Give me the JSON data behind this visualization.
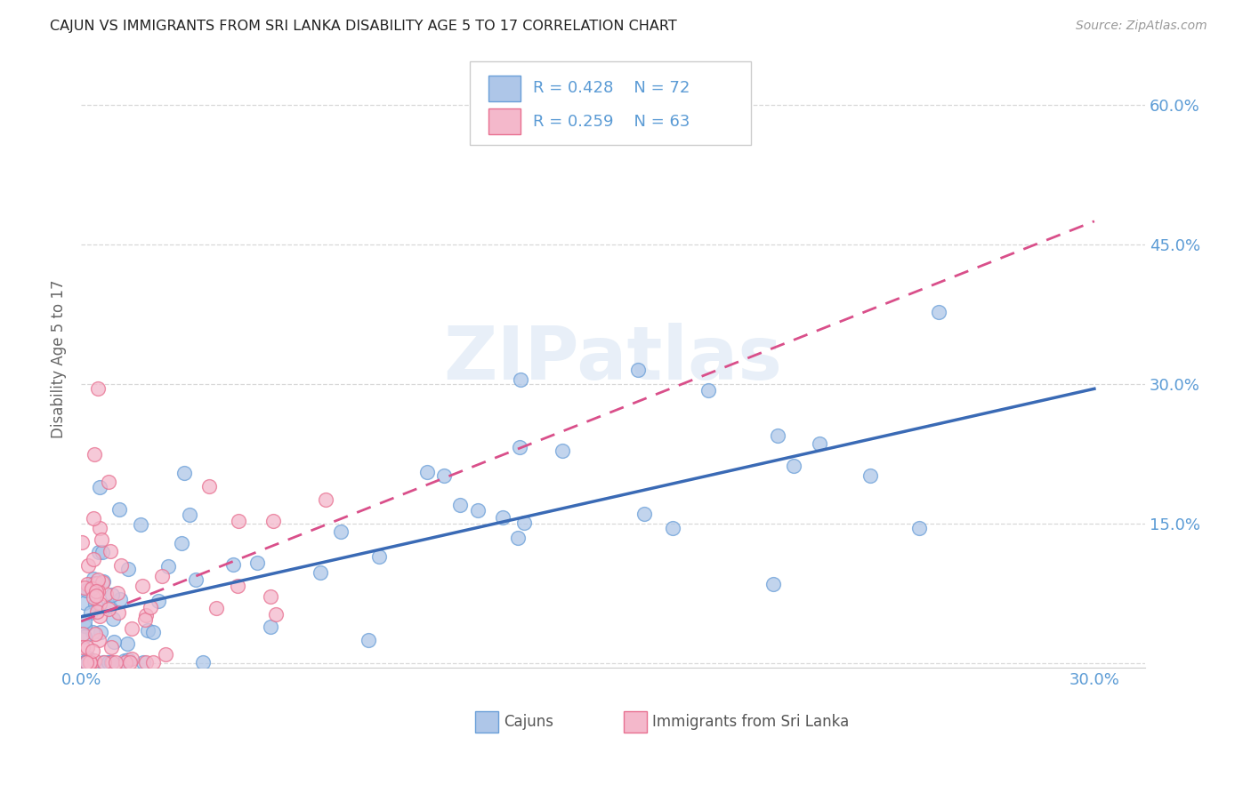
{
  "title": "CAJUN VS IMMIGRANTS FROM SRI LANKA DISABILITY AGE 5 TO 17 CORRELATION CHART",
  "source": "Source: ZipAtlas.com",
  "ylabel": "Disability Age 5 to 17",
  "xlim": [
    0.0,
    0.315
  ],
  "ylim": [
    -0.005,
    0.66
  ],
  "xticks": [
    0.0,
    0.05,
    0.1,
    0.15,
    0.2,
    0.25,
    0.3
  ],
  "xtick_labels": [
    "0.0%",
    "",
    "",
    "",
    "",
    "",
    "30.0%"
  ],
  "yticks": [
    0.0,
    0.15,
    0.3,
    0.45,
    0.6
  ],
  "ytick_right_labels": [
    "",
    "15.0%",
    "30.0%",
    "45.0%",
    "60.0%"
  ],
  "cajun_color": "#aec6e8",
  "cajun_edge_color": "#6a9fd8",
  "sri_lanka_color": "#f4b8cb",
  "sri_lanka_edge_color": "#e87090",
  "cajun_line_color": "#3a6ab5",
  "sri_lanka_line_color": "#d94f8a",
  "grid_color": "#d8d8d8",
  "watermark": "ZIPatlas",
  "background_color": "#ffffff",
  "tick_color": "#5b9bd5",
  "cajun_line_y0": 0.05,
  "cajun_line_y1": 0.295,
  "sri_line_y0": 0.045,
  "sri_line_y1": 0.475
}
